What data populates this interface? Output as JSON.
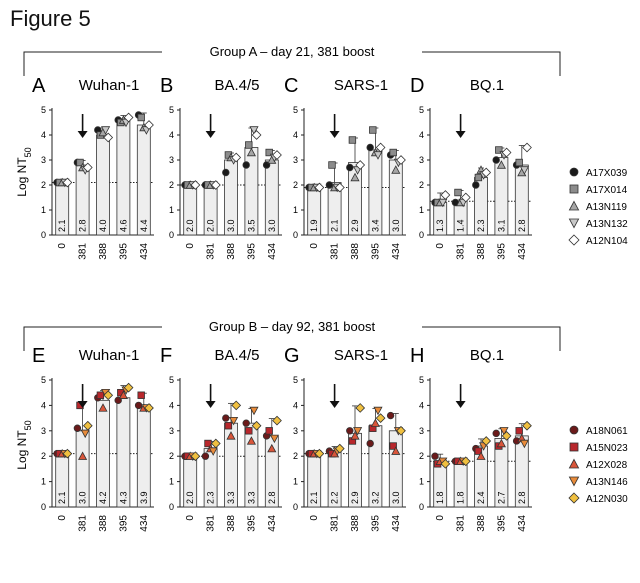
{
  "figure_title": "Figure 5",
  "ylabel_main": "Log NT",
  "ylabel_sub": "50",
  "groups": [
    {
      "title": "Group A – day 21, 381 boost",
      "legend": [
        "A17X039",
        "A17X014",
        "A13N119",
        "A13N132",
        "A12N104"
      ]
    },
    {
      "title": "Group B – day 92, 381 boost",
      "legend": [
        "A18N061",
        "A15N023",
        "A12X028",
        "A13N146",
        "A12N030"
      ]
    }
  ],
  "colors": {
    "groupA": [
      "#1a1a1a",
      "#8c8c8c",
      "#a6a6a6",
      "#c8c8c8",
      "#ffffff"
    ],
    "groupB": [
      "#6b1a1a",
      "#b8272c",
      "#d9553a",
      "#e88b3a",
      "#f0c040"
    ],
    "bar_fill": "#eeeeee",
    "bar_stroke": "#333333"
  },
  "chart_data": [
    {
      "panel": "A",
      "title": "Wuhan-1",
      "type": "bar",
      "group": 0,
      "categories": [
        "0",
        "381",
        "388",
        "395",
        "434"
      ],
      "values": [
        2.1,
        2.8,
        4.0,
        4.6,
        4.4
      ],
      "value_labels": [
        "2.1",
        "2.8",
        "4.0",
        "4.6",
        "4.4"
      ],
      "points": [
        [
          2.1,
          2.1,
          2.1,
          2.1,
          2.1
        ],
        [
          2.9,
          2.9,
          2.7,
          2.6,
          2.7
        ],
        [
          4.2,
          4.0,
          4.1,
          4.2,
          3.9
        ],
        [
          4.6,
          4.5,
          4.6,
          4.5,
          4.7
        ],
        [
          4.8,
          4.7,
          4.3,
          4.2,
          4.4
        ]
      ],
      "threshold": 2.1,
      "ylim": [
        0,
        5
      ],
      "yticks": [
        "0",
        "1",
        "2",
        "3",
        "4",
        "5"
      ]
    },
    {
      "panel": "B",
      "title": "BA.4/5",
      "type": "bar",
      "group": 0,
      "categories": [
        "0",
        "381",
        "388",
        "395",
        "434"
      ],
      "values": [
        2.0,
        2.0,
        3.0,
        3.5,
        3.0
      ],
      "value_labels": [
        "2.0",
        "2.0",
        "3.0",
        "3.5",
        "3.0"
      ],
      "points": [
        [
          2.0,
          2.0,
          2.0,
          2.0,
          2.0
        ],
        [
          2.0,
          2.0,
          2.0,
          2.0,
          2.0
        ],
        [
          2.5,
          3.2,
          3.1,
          3.0,
          3.1
        ],
        [
          2.8,
          3.6,
          3.3,
          4.2,
          4.0
        ],
        [
          2.8,
          3.3,
          3.0,
          3.1,
          3.2
        ]
      ],
      "threshold": 2.0,
      "ylim": [
        0,
        5
      ],
      "yticks": [
        "0",
        "1",
        "2",
        "3",
        "4",
        "5"
      ]
    },
    {
      "panel": "C",
      "title": "SARS-1",
      "type": "bar",
      "group": 0,
      "categories": [
        "0",
        "381",
        "388",
        "395",
        "434"
      ],
      "values": [
        1.9,
        2.1,
        2.9,
        3.4,
        3.0
      ],
      "value_labels": [
        "1.9",
        "2.1",
        "2.9",
        "3.4",
        "3.0"
      ],
      "points": [
        [
          1.9,
          1.9,
          1.9,
          1.9,
          1.9
        ],
        [
          2.0,
          2.8,
          1.9,
          1.9,
          1.9
        ],
        [
          2.7,
          3.8,
          2.3,
          2.6,
          2.8
        ],
        [
          3.5,
          4.2,
          3.3,
          3.2,
          3.5
        ],
        [
          3.2,
          3.3,
          2.6,
          2.9,
          3.0
        ]
      ],
      "threshold": 1.9,
      "ylim": [
        0,
        5
      ],
      "yticks": [
        "0",
        "1",
        "2",
        "3",
        "4",
        "5"
      ]
    },
    {
      "panel": "D",
      "title": "BQ.1",
      "type": "bar",
      "group": 0,
      "categories": [
        "0",
        "381",
        "388",
        "395",
        "434"
      ],
      "values": [
        1.3,
        1.4,
        2.3,
        3.1,
        2.8
      ],
      "value_labels": [
        "1.3",
        "1.4",
        "2.3",
        "3.1",
        "2.8"
      ],
      "points": [
        [
          1.3,
          1.3,
          1.3,
          1.3,
          1.6
        ],
        [
          1.3,
          1.7,
          1.3,
          1.3,
          1.5
        ],
        [
          2.0,
          2.3,
          2.6,
          2.4,
          2.5
        ],
        [
          3.0,
          3.4,
          2.8,
          3.2,
          3.3
        ],
        [
          2.8,
          2.9,
          2.5,
          2.6,
          3.5
        ]
      ],
      "threshold": 1.35,
      "ylim": [
        0,
        5
      ],
      "yticks": [
        "0",
        "1",
        "2",
        "3",
        "4",
        "5"
      ]
    },
    {
      "panel": "E",
      "title": "Wuhan-1",
      "type": "bar",
      "group": 1,
      "categories": [
        "0",
        "381",
        "388",
        "395",
        "434"
      ],
      "values": [
        2.1,
        3.0,
        4.2,
        4.3,
        3.9
      ],
      "value_labels": [
        "2.1",
        "3.0",
        "4.2",
        "4.3",
        "3.9"
      ],
      "points": [
        [
          2.1,
          2.1,
          2.1,
          2.1,
          2.1
        ],
        [
          3.1,
          4.0,
          2.0,
          2.9,
          3.2
        ],
        [
          4.3,
          4.4,
          3.9,
          4.5,
          4.4
        ],
        [
          4.2,
          4.5,
          4.4,
          4.6,
          4.7
        ],
        [
          4.0,
          4.4,
          3.9,
          3.9,
          3.9
        ]
      ],
      "threshold": 2.1,
      "ylim": [
        0,
        5
      ],
      "yticks": [
        "0",
        "1",
        "2",
        "3",
        "4",
        "5"
      ]
    },
    {
      "panel": "F",
      "title": "BA.4/5",
      "type": "bar",
      "group": 1,
      "categories": [
        "0",
        "381",
        "388",
        "395",
        "434"
      ],
      "values": [
        2.0,
        2.3,
        3.3,
        3.3,
        2.8
      ],
      "value_labels": [
        "2.0",
        "2.3",
        "3.3",
        "3.3",
        "2.8"
      ],
      "points": [
        [
          2.0,
          2.0,
          2.0,
          2.0,
          2.0
        ],
        [
          2.0,
          2.5,
          2.3,
          2.2,
          2.5
        ],
        [
          3.5,
          3.2,
          2.8,
          3.4,
          4.0
        ],
        [
          3.3,
          3.0,
          2.6,
          3.8,
          3.2
        ],
        [
          2.8,
          3.0,
          2.3,
          2.7,
          3.4
        ]
      ],
      "threshold": 2.0,
      "ylim": [
        0,
        5
      ],
      "yticks": [
        "0",
        "1",
        "2",
        "3",
        "4",
        "5"
      ]
    },
    {
      "panel": "G",
      "title": "SARS-1",
      "type": "bar",
      "group": 1,
      "categories": [
        "0",
        "381",
        "388",
        "395",
        "434"
      ],
      "values": [
        2.1,
        2.2,
        2.9,
        3.2,
        3.0
      ],
      "value_labels": [
        "2.1",
        "2.2",
        "2.9",
        "3.2",
        "3.0"
      ],
      "points": [
        [
          2.1,
          2.1,
          2.1,
          2.1,
          2.1
        ],
        [
          2.2,
          2.1,
          2.1,
          2.2,
          2.3
        ],
        [
          3.0,
          2.6,
          2.8,
          3.0,
          3.9
        ],
        [
          2.5,
          3.1,
          3.3,
          3.8,
          3.5
        ],
        [
          3.6,
          2.4,
          2.2,
          3.0,
          3.0
        ]
      ],
      "threshold": 2.1,
      "ylim": [
        0,
        5
      ],
      "yticks": [
        "0",
        "1",
        "2",
        "3",
        "4",
        "5"
      ]
    },
    {
      "panel": "H",
      "title": "BQ.1",
      "type": "bar",
      "group": 1,
      "categories": [
        "0",
        "381",
        "388",
        "395",
        "434"
      ],
      "values": [
        1.8,
        1.8,
        2.4,
        2.7,
        2.8
      ],
      "value_labels": [
        "1.8",
        "1.8",
        "2.4",
        "2.7",
        "2.8"
      ],
      "points": [
        [
          2.0,
          1.7,
          1.8,
          1.8,
          1.7
        ],
        [
          1.8,
          1.8,
          1.8,
          1.8,
          1.8
        ],
        [
          2.3,
          2.2,
          2.0,
          2.4,
          2.6
        ],
        [
          2.9,
          2.4,
          2.5,
          3.0,
          2.8
        ],
        [
          2.6,
          3.0,
          2.7,
          2.5,
          3.2
        ]
      ],
      "threshold": 1.8,
      "ylim": [
        0,
        5
      ],
      "yticks": [
        "0",
        "1",
        "2",
        "3",
        "4",
        "5"
      ]
    }
  ]
}
